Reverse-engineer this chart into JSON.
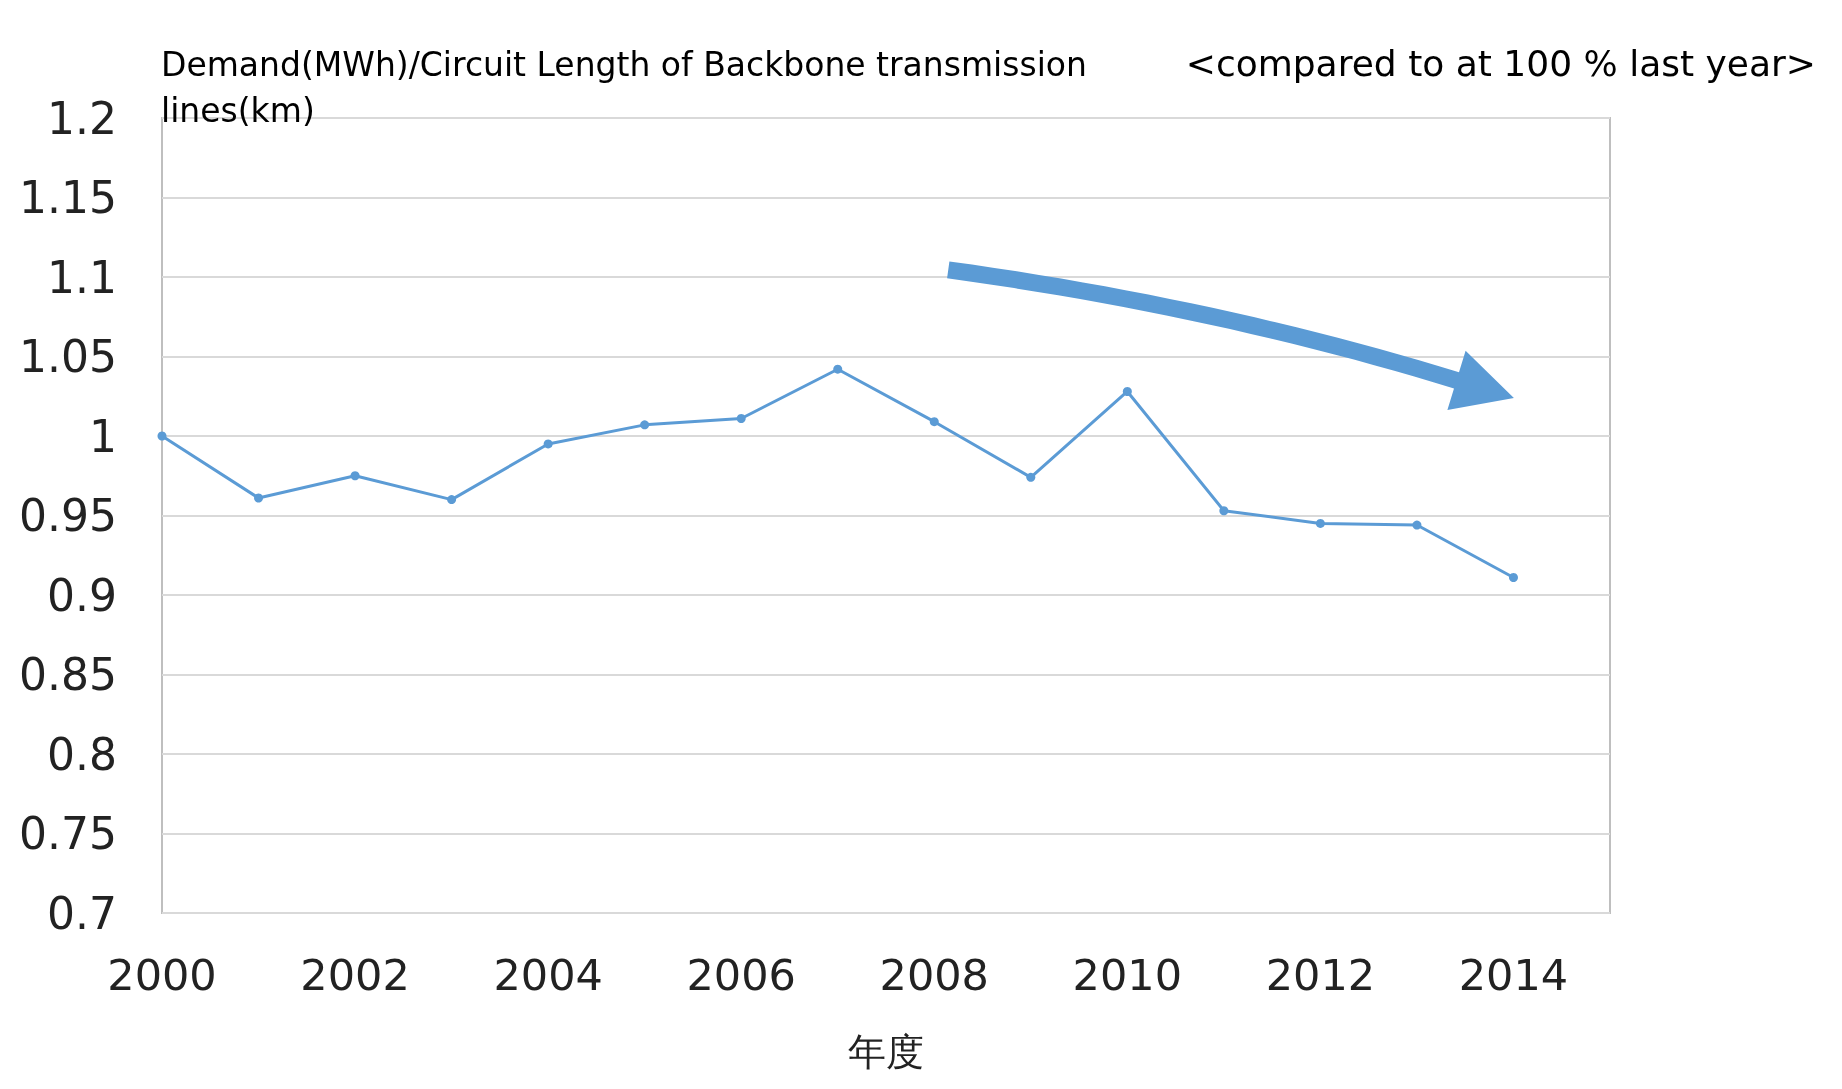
{
  "chart_data": {
    "type": "line",
    "ylabel": "Demand(MWh)/Circuit Length of Backbone transmission lines(km)",
    "xlabel": "年度",
    "annotations": [
      "<compared to at 100 % last year>"
    ],
    "x": [
      2000,
      2001,
      2002,
      2003,
      2004,
      2005,
      2006,
      2007,
      2008,
      2009,
      2010,
      2011,
      2012,
      2013,
      2014
    ],
    "series": [
      {
        "color": "#5b9bd5",
        "values": [
          1,
          0.961,
          0.975,
          0.96,
          0.995,
          1.007,
          1.011,
          1.042,
          1.009,
          0.974,
          1.028,
          0.953,
          0.945,
          0.944,
          0.911
        ]
      }
    ],
    "xlim": [
      2000,
      2015
    ],
    "xticks": [
      2000,
      2002,
      2004,
      2006,
      2008,
      2010,
      2012,
      2014
    ],
    "ylim": [
      0.7,
      1.2
    ],
    "yticks": [
      0.7,
      0.75,
      0.8,
      0.85,
      0.9,
      0.95,
      1,
      1.05,
      1.1,
      1.15,
      1.2
    ],
    "grid": "y",
    "marker": "circle",
    "line_style": "solid"
  }
}
